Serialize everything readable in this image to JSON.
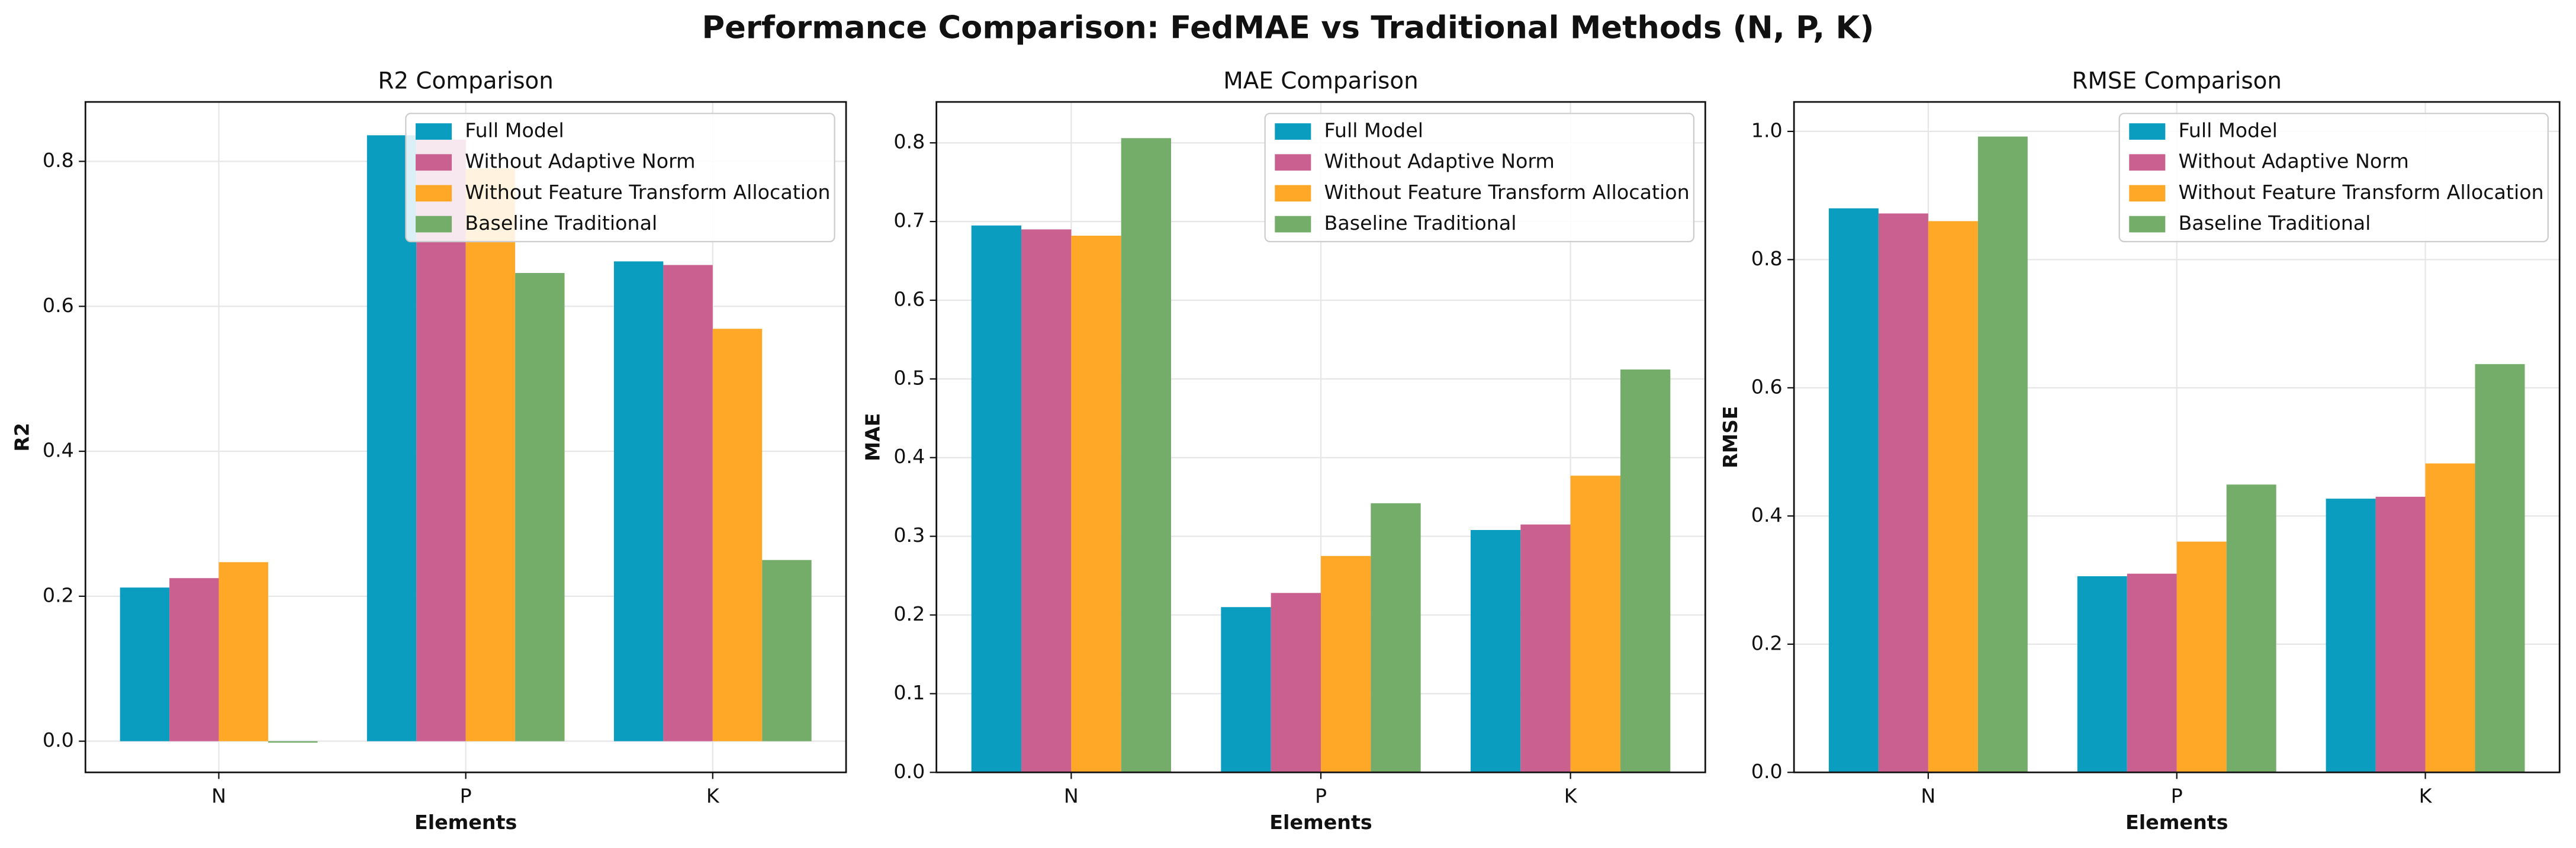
{
  "title": "Performance Comparison: FedMAE vs Traditional Methods (N, P, K)",
  "chart_data": [
    {
      "type": "bar",
      "title": "R2 Comparison",
      "x_label": "Elements",
      "y_label": "R2",
      "categories": [
        "N",
        "P",
        "K"
      ],
      "series": [
        {
          "name": "Full Model",
          "color": "#0b9dbf",
          "values": [
            0.212,
            0.836,
            0.662
          ]
        },
        {
          "name": "Without Adaptive Norm",
          "color": "#c9608f",
          "values": [
            0.225,
            0.83,
            0.657
          ]
        },
        {
          "name": "Without Feature Transform Allocation",
          "color": "#ffa726",
          "values": [
            0.247,
            0.79,
            0.569
          ]
        },
        {
          "name": "Baseline Traditional",
          "color": "#74ad6a",
          "values": [
            -0.002,
            0.646,
            0.25
          ]
        }
      ],
      "ylim": [
        -0.043,
        0.882
      ],
      "yticks": [
        {
          "value": 0,
          "label": "0.0"
        },
        0.2,
        0.4,
        0.6,
        0.8
      ],
      "grid": true,
      "legend": "upper right"
    },
    {
      "type": "bar",
      "title": "MAE Comparison",
      "x_label": "Elements",
      "y_label": "MAE",
      "categories": [
        "N",
        "P",
        "K"
      ],
      "series": [
        {
          "name": "Full Model",
          "color": "#0b9dbf",
          "values": [
            0.695,
            0.21,
            0.308
          ]
        },
        {
          "name": "Without Adaptive Norm",
          "color": "#c9608f",
          "values": [
            0.69,
            0.228,
            0.315
          ]
        },
        {
          "name": "Without Feature Transform Allocation",
          "color": "#ffa726",
          "values": [
            0.682,
            0.275,
            0.377
          ]
        },
        {
          "name": "Baseline Traditional",
          "color": "#74ad6a",
          "values": [
            0.806,
            0.342,
            0.512
          ]
        }
      ],
      "ylim": [
        0,
        0.852
      ],
      "yticks": [
        {
          "value": 0,
          "label": "0.0"
        },
        0.1,
        0.2,
        0.3,
        0.4,
        0.5,
        0.6,
        0.7,
        0.8
      ],
      "grid": true,
      "legend": "upper right"
    },
    {
      "type": "bar",
      "title": "RMSE Comparison",
      "x_label": "Elements",
      "y_label": "RMSE",
      "categories": [
        "N",
        "P",
        "K"
      ],
      "series": [
        {
          "name": "Full Model",
          "color": "#0b9dbf",
          "values": [
            0.88,
            0.306,
            0.427
          ]
        },
        {
          "name": "Without Adaptive Norm",
          "color": "#c9608f",
          "values": [
            0.872,
            0.31,
            0.43
          ]
        },
        {
          "name": "Without Feature Transform Allocation",
          "color": "#ffa726",
          "values": [
            0.86,
            0.36,
            0.482
          ]
        },
        {
          "name": "Baseline Traditional",
          "color": "#74ad6a",
          "values": [
            0.992,
            0.449,
            0.637
          ]
        }
      ],
      "ylim": [
        0,
        1.046
      ],
      "yticks": [
        {
          "value": 0,
          "label": "0.0"
        },
        0.2,
        0.4,
        0.6,
        0.8,
        {
          "value": 1,
          "label": "1.0"
        }
      ],
      "grid": true,
      "legend": "upper right"
    }
  ]
}
